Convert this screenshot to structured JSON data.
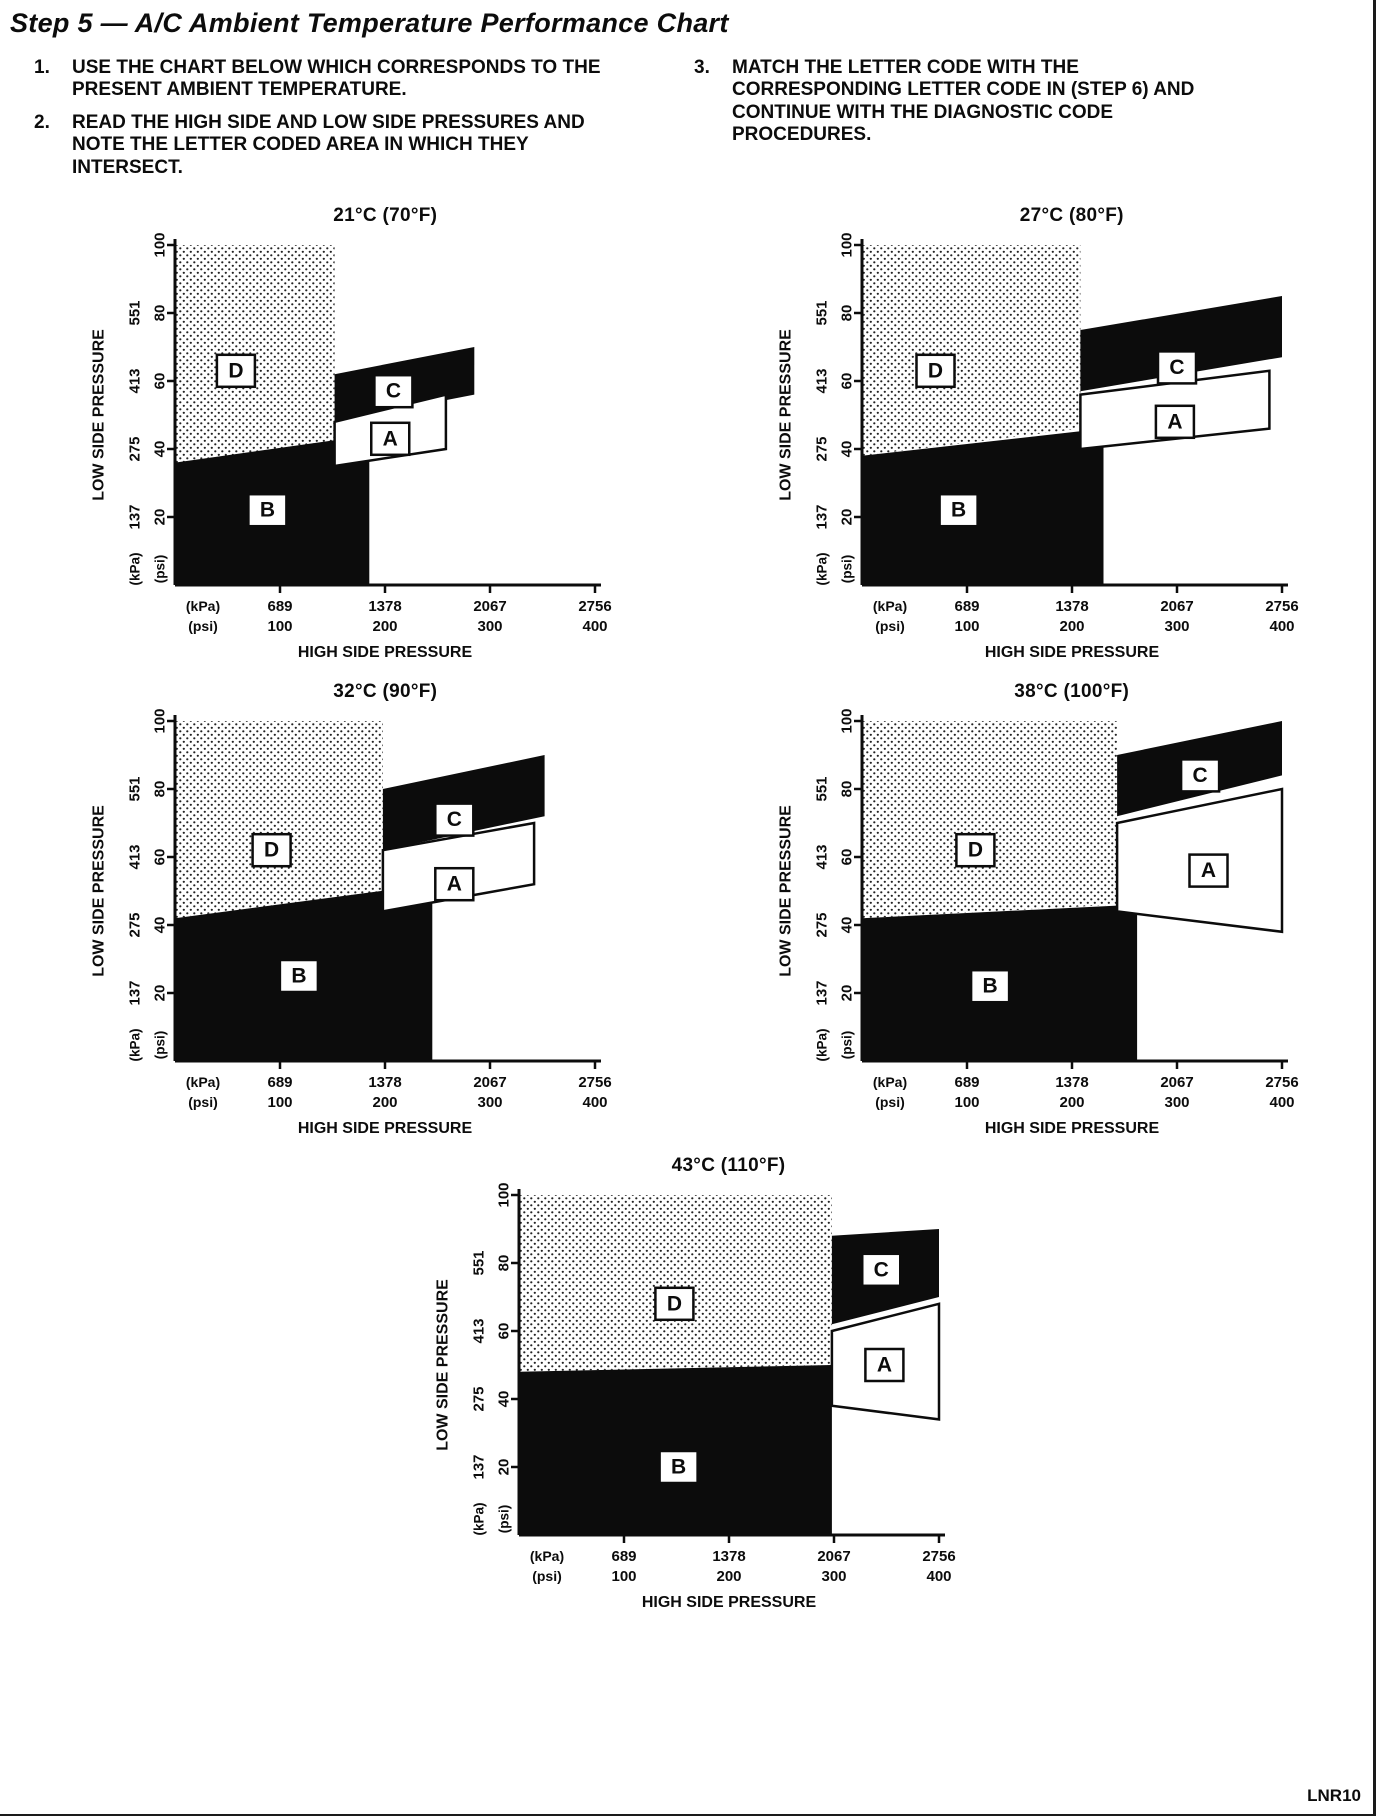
{
  "page": {
    "title": "Step 5 — A/C Ambient Temperature Performance Chart",
    "footer_code": "LNR10"
  },
  "instructions": [
    {
      "number": "1.",
      "text": "USE THE CHART BELOW WHICH CORRESPONDS TO THE PRESENT AMBIENT TEMPERATURE."
    },
    {
      "number": "2.",
      "text": "READ THE HIGH SIDE AND LOW SIDE PRESSURES AND NOTE THE LETTER CODED AREA IN WHICH THEY INTERSECT."
    },
    {
      "number": "3.",
      "text": "MATCH THE LETTER CODE WITH THE CORRESPONDING LETTER CODE IN (STEP 6) AND CONTINUE WITH THE DIAGNOSTIC CODE PROCEDURES."
    }
  ],
  "chart_data": {
    "type": "area",
    "description": "Five A/C diagnostic region charts (letter-coded areas A, B, C, D) of low side pressure vs high side pressure, one per ambient temperature. Region polygons are given in psi coordinates (x: high side 0-400 psi, y: low side 0-100 psi). Region D is dotted, regions B and C are solid black, region A is white with a black outline.",
    "axes": {
      "x": {
        "label": "HIGH SIDE PRESSURE",
        "units": [
          "(kPa)",
          "(psi)"
        ],
        "ticks_kpa": [
          689,
          1378,
          2067,
          2756
        ],
        "ticks_psi": [
          100,
          200,
          300,
          400
        ],
        "range_psi": [
          0,
          400
        ]
      },
      "y": {
        "label": "LOW SIDE PRESSURE",
        "units": [
          "(kPa)",
          "(psi)"
        ],
        "ticks_kpa": [
          137,
          275,
          413,
          551
        ],
        "ticks_psi": [
          20,
          40,
          60,
          80,
          100
        ],
        "range_psi": [
          0,
          100
        ]
      }
    },
    "region_styles": {
      "A": "white-outlined",
      "B": "black",
      "C": "black",
      "D": "dotted"
    },
    "charts": [
      {
        "id": "21c",
        "title": "21°C (70°F)",
        "regions": {
          "D": [
            [
              0,
              100
            ],
            [
              152,
              100
            ],
            [
              152,
              42
            ],
            [
              0,
              35
            ]
          ],
          "B": [
            [
              0,
              36
            ],
            [
              185,
              44
            ],
            [
              185,
              0
            ],
            [
              0,
              0
            ]
          ],
          "C": [
            [
              152,
              48
            ],
            [
              285,
              56
            ],
            [
              285,
              70
            ],
            [
              152,
              62
            ]
          ],
          "A": [
            [
              152,
              35
            ],
            [
              258,
              40
            ],
            [
              258,
              56
            ],
            [
              152,
              48
            ]
          ]
        },
        "labels": {
          "D": [
            58,
            63
          ],
          "C": [
            208,
            57
          ],
          "A": [
            205,
            43
          ],
          "B": [
            88,
            22
          ]
        }
      },
      {
        "id": "27c",
        "title": "27°C (80°F)",
        "regions": {
          "D": [
            [
              0,
              100
            ],
            [
              208,
              100
            ],
            [
              208,
              46
            ],
            [
              0,
              38
            ]
          ],
          "B": [
            [
              0,
              38
            ],
            [
              230,
              46
            ],
            [
              230,
              0
            ],
            [
              0,
              0
            ]
          ],
          "C": [
            [
              208,
              57
            ],
            [
              400,
              67
            ],
            [
              400,
              85
            ],
            [
              208,
              75
            ]
          ],
          "A": [
            [
              208,
              40
            ],
            [
              388,
              46
            ],
            [
              388,
              63
            ],
            [
              208,
              56
            ]
          ]
        },
        "labels": {
          "D": [
            70,
            63
          ],
          "C": [
            300,
            64
          ],
          "A": [
            298,
            48
          ],
          "B": [
            92,
            22
          ]
        }
      },
      {
        "id": "32c",
        "title": "32°C (90°F)",
        "regions": {
          "D": [
            [
              0,
              100
            ],
            [
              198,
              100
            ],
            [
              198,
              50
            ],
            [
              0,
              42
            ]
          ],
          "B": [
            [
              0,
              42
            ],
            [
              245,
              52
            ],
            [
              245,
              0
            ],
            [
              0,
              0
            ]
          ],
          "C": [
            [
              198,
              62
            ],
            [
              352,
              72
            ],
            [
              352,
              90
            ],
            [
              198,
              80
            ]
          ],
          "A": [
            [
              198,
              44
            ],
            [
              342,
              52
            ],
            [
              342,
              70
            ],
            [
              198,
              62
            ]
          ]
        },
        "labels": {
          "D": [
            92,
            62
          ],
          "C": [
            266,
            71
          ],
          "A": [
            266,
            52
          ],
          "B": [
            118,
            25
          ]
        }
      },
      {
        "id": "38c",
        "title": "38°C (100°F)",
        "regions": {
          "D": [
            [
              0,
              100
            ],
            [
              243,
              100
            ],
            [
              243,
              46
            ],
            [
              0,
              42
            ]
          ],
          "B": [
            [
              0,
              42
            ],
            [
              262,
              46
            ],
            [
              262,
              0
            ],
            [
              0,
              0
            ]
          ],
          "C": [
            [
              243,
              72
            ],
            [
              400,
              84
            ],
            [
              400,
              100
            ],
            [
              243,
              90
            ]
          ],
          "A": [
            [
              243,
              44
            ],
            [
              400,
              38
            ],
            [
              400,
              80
            ],
            [
              243,
              70
            ]
          ]
        },
        "labels": {
          "D": [
            108,
            62
          ],
          "C": [
            322,
            84
          ],
          "A": [
            330,
            56
          ],
          "B": [
            122,
            22
          ]
        }
      },
      {
        "id": "43c",
        "title": "43°C (110°F)",
        "regions": {
          "D": [
            [
              0,
              100
            ],
            [
              298,
              100
            ],
            [
              298,
              50
            ],
            [
              0,
              48
            ]
          ],
          "B": [
            [
              0,
              48
            ],
            [
              298,
              50
            ],
            [
              298,
              0
            ],
            [
              0,
              0
            ]
          ],
          "C": [
            [
              298,
              62
            ],
            [
              400,
              70
            ],
            [
              400,
              90
            ],
            [
              298,
              88
            ]
          ],
          "A": [
            [
              298,
              38
            ],
            [
              400,
              34
            ],
            [
              400,
              68
            ],
            [
              298,
              60
            ]
          ]
        },
        "labels": {
          "D": [
            148,
            68
          ],
          "C": [
            345,
            78
          ],
          "A": [
            348,
            50
          ],
          "B": [
            152,
            20
          ]
        }
      }
    ]
  }
}
